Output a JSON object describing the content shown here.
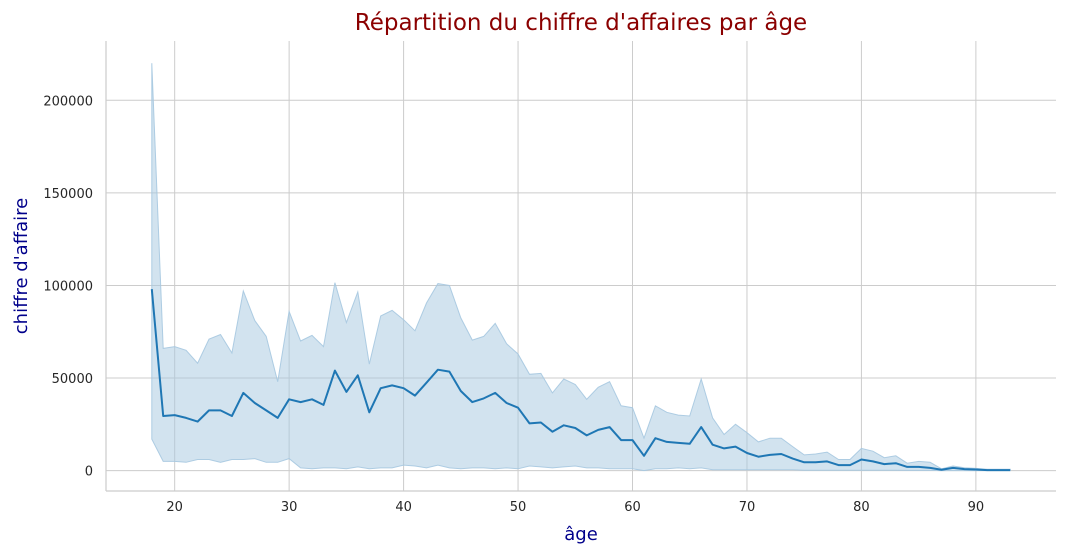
{
  "chart_data": {
    "type": "line",
    "title": "Répartition du chiffre d'affaires par âge",
    "xlabel": "âge",
    "ylabel": "chiffre d'affaire",
    "xlim": [
      14,
      97
    ],
    "ylim": [
      -11000,
      232000
    ],
    "x_ticks": [
      20,
      30,
      40,
      50,
      60,
      70,
      80,
      90
    ],
    "y_ticks": [
      0,
      50000,
      100000,
      150000,
      200000
    ],
    "grid": true,
    "colors": {
      "title": "#8b0000",
      "axis_label": "#00008b",
      "line": "#1f77b4",
      "band": "#a6c8e0",
      "grid": "#cccccc",
      "spine": "#cccccc"
    },
    "series": [
      {
        "type": "line_with_ci",
        "x": [
          18,
          19,
          20,
          21,
          22,
          23,
          24,
          25,
          26,
          27,
          28,
          29,
          30,
          31,
          32,
          33,
          34,
          35,
          36,
          37,
          38,
          39,
          40,
          41,
          42,
          43,
          44,
          45,
          46,
          47,
          48,
          49,
          50,
          51,
          52,
          53,
          54,
          55,
          56,
          57,
          58,
          59,
          60,
          61,
          62,
          63,
          64,
          65,
          66,
          67,
          68,
          69,
          70,
          71,
          72,
          73,
          74,
          75,
          76,
          77,
          78,
          79,
          80,
          81,
          82,
          83,
          84,
          85,
          86,
          87,
          88,
          89,
          90,
          91,
          92,
          93
        ],
        "y": [
          98000,
          29500,
          30000,
          28500,
          26500,
          32500,
          32500,
          29500,
          42000,
          36500,
          32500,
          28500,
          38500,
          37000,
          38500,
          35500,
          54000,
          42500,
          51500,
          31500,
          44500,
          46000,
          44500,
          40500,
          47500,
          54500,
          53500,
          43000,
          37000,
          39000,
          42000,
          36500,
          34000,
          25500,
          26000,
          21000,
          24500,
          23000,
          19000,
          22000,
          23500,
          16500,
          16500,
          8000,
          17500,
          15500,
          15000,
          14500,
          23500,
          14000,
          12000,
          13000,
          9500,
          7500,
          8500,
          9000,
          6500,
          4500,
          4500,
          5000,
          3000,
          3000,
          6000,
          5000,
          3500,
          4000,
          2000,
          2000,
          1500,
          500,
          1500,
          800,
          600,
          300,
          300,
          300
        ],
        "ci_high": [
          220000,
          66000,
          67000,
          65000,
          58000,
          71000,
          73500,
          63500,
          97000,
          81000,
          72500,
          48000,
          86000,
          70000,
          73000,
          67000,
          101500,
          80000,
          96500,
          57500,
          83500,
          86500,
          81500,
          75500,
          90500,
          101000,
          100000,
          82500,
          70500,
          72500,
          79500,
          68500,
          63000,
          52000,
          52500,
          42000,
          49500,
          46500,
          38500,
          45000,
          48000,
          35000,
          34000,
          17500,
          35000,
          31500,
          30000,
          29500,
          49500,
          28500,
          19500,
          25000,
          20500,
          15500,
          17500,
          17500,
          13000,
          8500,
          9000,
          10000,
          6000,
          6000,
          12000,
          10500,
          7000,
          8000,
          4000,
          5000,
          4500,
          1000,
          2500,
          1600,
          1200,
          700,
          700,
          700
        ],
        "ci_low": [
          17000,
          5000,
          5000,
          4500,
          6000,
          6000,
          4500,
          6000,
          6000,
          6500,
          4500,
          4500,
          6500,
          1500,
          1000,
          1500,
          1500,
          1000,
          2000,
          1000,
          1500,
          1500,
          3000,
          2500,
          1500,
          3000,
          1500,
          1000,
          1500,
          1500,
          1000,
          1500,
          1000,
          2500,
          2000,
          1500,
          2000,
          2500,
          1500,
          1500,
          1000,
          1000,
          1000,
          0,
          1000,
          1000,
          1500,
          1000,
          1500,
          500,
          500,
          500,
          500,
          500,
          500,
          500,
          500,
          200,
          200,
          200,
          200,
          200,
          200,
          200,
          200,
          200,
          100,
          100,
          100,
          0,
          0,
          0,
          0,
          0,
          0,
          0
        ]
      }
    ]
  }
}
